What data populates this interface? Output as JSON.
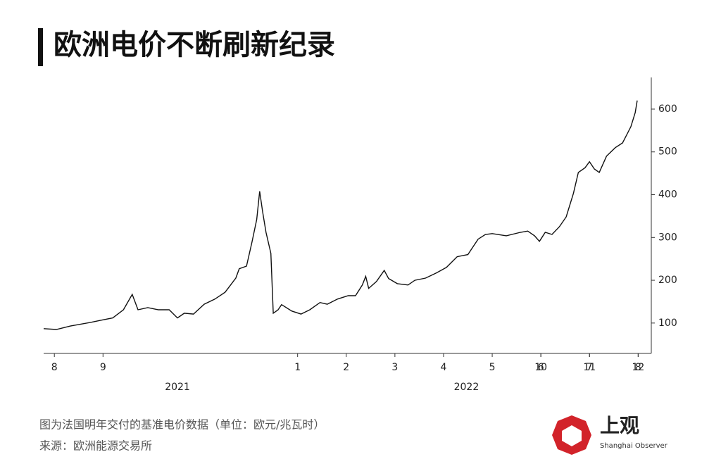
{
  "chart_data": {
    "type": "line",
    "title": "欧洲电价不断刷新纪录",
    "series": [
      {
        "color": "#111111",
        "x": [
          -0.22,
          0.04,
          0.33,
          0.77,
          0.98,
          1.2,
          1.42,
          1.6,
          1.72,
          1.92,
          2.14,
          2.36,
          2.53,
          2.67,
          2.86,
          3.08,
          3.3,
          3.51,
          3.73,
          3.8,
          3.95,
          4.06,
          4.16,
          4.22,
          4.28,
          4.35,
          4.45,
          4.5,
          4.6,
          4.67,
          4.88,
          5.07,
          5.25,
          5.46,
          5.61,
          5.82,
          6.04,
          6.19,
          6.33,
          6.4,
          6.46,
          6.62,
          6.78,
          6.87,
          7.05,
          7.27,
          7.41,
          7.63,
          7.85,
          8.06,
          8.28,
          8.5,
          8.71,
          8.86,
          9.0,
          9.29,
          9.58,
          9.73,
          9.87,
          9.97,
          10.09,
          10.23,
          10.38,
          10.52,
          10.67,
          10.77,
          10.91,
          11.0,
          11.1,
          11.2,
          11.35,
          11.53,
          11.68,
          11.85,
          11.94,
          11.98
        ],
        "values": [
          87,
          85,
          93,
          102,
          107,
          112,
          131,
          167,
          131,
          136,
          131,
          131,
          112,
          123,
          121,
          144,
          156,
          172,
          205,
          227,
          233,
          288,
          342,
          408,
          361,
          312,
          263,
          123,
          131,
          143,
          128,
          121,
          131,
          148,
          144,
          156,
          164,
          164,
          189,
          209,
          181,
          197,
          223,
          204,
          192,
          189,
          200,
          205,
          217,
          230,
          255,
          260,
          296,
          307,
          309,
          304,
          312,
          315,
          304,
          291,
          312,
          307,
          325,
          348,
          403,
          452,
          463,
          477,
          460,
          452,
          490,
          510,
          521,
          559,
          592,
          620
        ]
      }
    ],
    "xlim": [
      -0.22,
      12.27
    ],
    "xticks": [
      {
        "value": 0,
        "label": "8"
      },
      {
        "value": 1,
        "label": "9"
      },
      10,
      11,
      12,
      {
        "value": 5,
        "label": "1"
      },
      {
        "value": 6,
        "label": "2"
      },
      {
        "value": 7,
        "label": "3"
      },
      {
        "value": 8,
        "label": "4"
      },
      {
        "value": 9,
        "label": "5"
      },
      {
        "value": 10,
        "label": "6"
      },
      {
        "value": 11,
        "label": "7"
      },
      {
        "value": 12,
        "label": "8"
      }
    ],
    "year_labels": [
      {
        "x": 2.53,
        "label": "2021"
      },
      {
        "x": 8.47,
        "label": "2022"
      }
    ],
    "ylim": [
      29,
      674
    ],
    "yticks": [
      100,
      200,
      300,
      400,
      500,
      600
    ],
    "y_axis_side": "right",
    "note": "图为法国明年交付的基准电价数据（单位：欧元/兆瓦时）",
    "source": "来源：欧洲能源交易所"
  },
  "logo": {
    "name": "上观",
    "subtitle": "Shanghai Observer"
  }
}
